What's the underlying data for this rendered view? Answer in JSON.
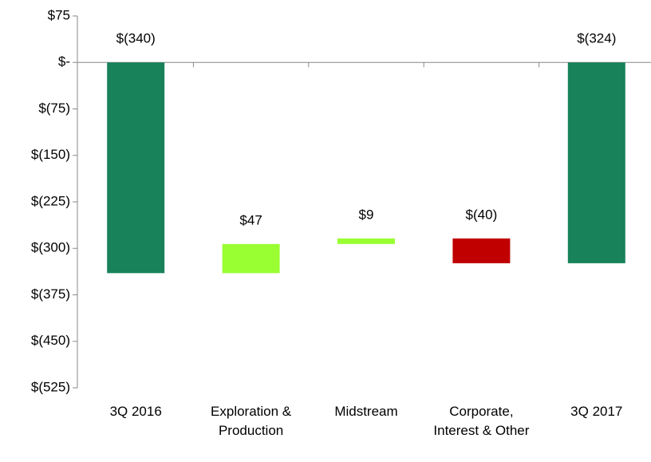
{
  "chart_data": {
    "type": "waterfall",
    "categories": [
      "3Q 2016",
      "Exploration & Production",
      "Midstream",
      "Corporate, Interest & Other",
      "3Q 2017"
    ],
    "values": [
      -340,
      47,
      9,
      -40,
      -324
    ],
    "value_labels": [
      "$(340)",
      "$47",
      "$9",
      "$(40)",
      "$(324)"
    ],
    "totals": [
      true,
      false,
      false,
      false,
      true
    ],
    "total_color": "#18825a",
    "increase_color": "#99ff33",
    "decrease_color": "#c00000",
    "ylim": [
      -525,
      75
    ],
    "yticks": [
      {
        "value": -525,
        "label": "$(525)"
      },
      {
        "value": -450,
        "label": "$(450)"
      },
      {
        "value": -375,
        "label": "$(375)"
      },
      {
        "value": -300,
        "label": "$(300)"
      },
      {
        "value": -225,
        "label": "$(225)"
      },
      {
        "value": -150,
        "label": "$(150)"
      },
      {
        "value": -75,
        "label": "$(75)"
      },
      {
        "value": 0,
        "label": "$-"
      },
      {
        "value": 75,
        "label": "$75"
      }
    ]
  }
}
